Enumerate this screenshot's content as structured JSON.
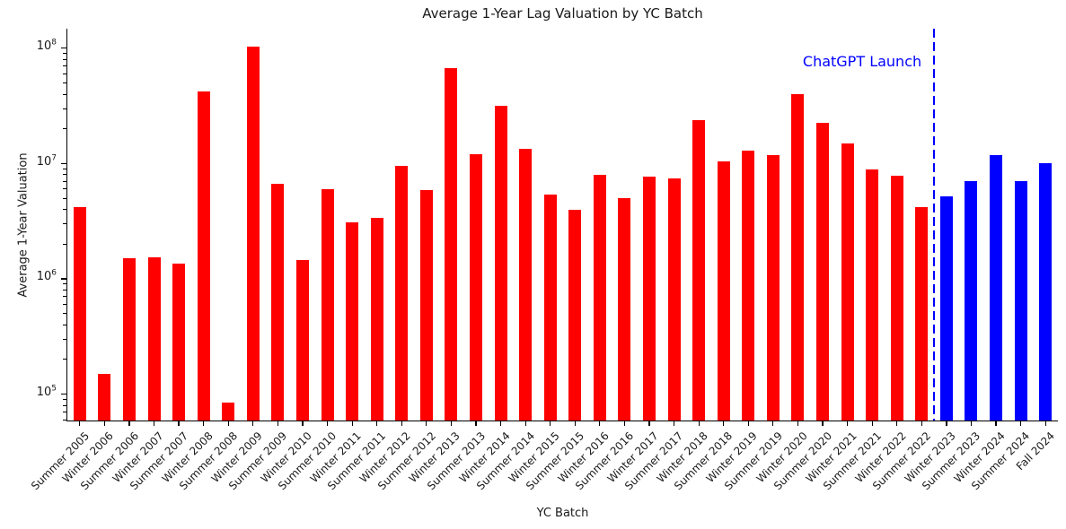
{
  "chart_data": {
    "type": "bar",
    "title": "Average 1-Year Lag Valuation by YC Batch",
    "xlabel": "YC Batch",
    "ylabel": "Average 1-Year Valuation",
    "yscale": "log",
    "ylim": [
      59000,
      148000000
    ],
    "ytick_exponents": [
      5,
      6,
      7,
      8
    ],
    "grid": false,
    "legend": null,
    "categories": [
      "Summer 2005",
      "Winter 2006",
      "Summer 2006",
      "Winter 2007",
      "Summer 2007",
      "Winter 2008",
      "Summer 2008",
      "Winter 2009",
      "Summer 2009",
      "Winter 2010",
      "Summer 2010",
      "Winter 2011",
      "Summer 2011",
      "Winter 2012",
      "Summer 2012",
      "Winter 2013",
      "Summer 2013",
      "Winter 2014",
      "Summer 2014",
      "Winter 2015",
      "Summer 2015",
      "Winter 2016",
      "Summer 2016",
      "Winter 2017",
      "Summer 2017",
      "Winter 2018",
      "Summer 2018",
      "Winter 2019",
      "Summer 2019",
      "Winter 2020",
      "Summer 2020",
      "Winter 2021",
      "Summer 2021",
      "Winter 2022",
      "Summer 2022",
      "Winter 2023",
      "Summer 2023",
      "Winter 2024",
      "Summer 2024",
      "Fall 2024"
    ],
    "values": [
      4200000,
      150000,
      1500000,
      1550000,
      1350000,
      42000000,
      84000,
      103000000,
      6700000,
      1450000,
      6000000,
      3100000,
      3400000,
      9600000,
      5900000,
      67000000,
      12000000,
      31500000,
      13500000,
      5400000,
      3950000,
      8000000,
      5000000,
      7700000,
      7400000,
      24000000,
      10400000,
      13000000,
      11800000,
      40000000,
      22500000,
      15000000,
      8900000,
      7900000,
      4200000,
      5200000,
      7100000,
      11900000,
      7000000,
      10100000
    ],
    "split_index": 35,
    "series_colors": {
      "pre_chatgpt": "#ff0000",
      "post_chatgpt": "#0000ff"
    },
    "annotation": {
      "label": "ChatGPT Launch",
      "text_color": "#0000ff",
      "line_color": "#0000ff",
      "line_style": "dashed",
      "position_between": [
        "Summer 2022",
        "Winter 2023"
      ]
    }
  },
  "figure": {
    "text_color": "#1a1a1a",
    "axis_color": "#000000",
    "background": "#ffffff"
  }
}
